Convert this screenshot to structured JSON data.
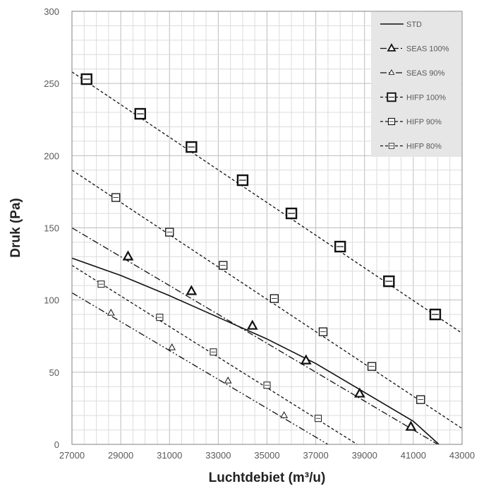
{
  "chart_data": {
    "type": "line",
    "xlabel": "Luchtdebiet (m³/u)",
    "ylabel": "Druk (Pa)",
    "xlim": [
      27000,
      43000
    ],
    "ylim": [
      0,
      300
    ],
    "x_ticks": [
      "27000",
      "29000",
      "31000",
      "33000",
      "35000",
      "37000",
      "39000",
      "41000",
      "43000"
    ],
    "y_ticks": [
      "0",
      "50",
      "100",
      "150",
      "200",
      "250",
      "300"
    ],
    "grid": "on (major and minor)",
    "legend_position": "top-right",
    "series": [
      {
        "name": "STD",
        "style": "solid",
        "marker": "none",
        "points": [
          [
            27000,
            129
          ],
          [
            29000,
            117
          ],
          [
            31000,
            103
          ],
          [
            33000,
            88
          ],
          [
            35000,
            73
          ],
          [
            37000,
            56
          ],
          [
            39000,
            36
          ],
          [
            41000,
            16
          ],
          [
            42050,
            0
          ]
        ]
      },
      {
        "name": "SEAS 100%",
        "style": "dash-dot",
        "marker": "triangle-bold",
        "points": [
          [
            27000,
            150
          ],
          [
            42000,
            0
          ]
        ],
        "markers": [
          [
            29300,
            130
          ],
          [
            31900,
            106
          ],
          [
            34400,
            82
          ],
          [
            36600,
            58
          ],
          [
            38800,
            35
          ],
          [
            40900,
            12
          ]
        ]
      },
      {
        "name": "SEAS 90%",
        "style": "dash-dot-dot",
        "marker": "triangle",
        "points": [
          [
            27000,
            105
          ],
          [
            37500,
            0
          ]
        ],
        "markers": [
          [
            28600,
            91
          ],
          [
            31100,
            67
          ],
          [
            33400,
            44
          ],
          [
            35700,
            20
          ]
        ]
      },
      {
        "name": "HIFP 100%",
        "style": "dash",
        "marker": "square-bold",
        "points": [
          [
            27000,
            258
          ],
          [
            43000,
            77
          ]
        ],
        "markers": [
          [
            27600,
            253
          ],
          [
            29800,
            229
          ],
          [
            31900,
            206
          ],
          [
            34000,
            183
          ],
          [
            36000,
            160
          ],
          [
            38000,
            137
          ],
          [
            40000,
            113
          ],
          [
            41900,
            90
          ]
        ]
      },
      {
        "name": "HIFP 90%",
        "style": "dash",
        "marker": "square",
        "points": [
          [
            27000,
            190
          ],
          [
            43000,
            11
          ]
        ],
        "markers": [
          [
            28800,
            171
          ],
          [
            31000,
            147
          ],
          [
            33200,
            124
          ],
          [
            35300,
            101
          ],
          [
            37300,
            78
          ],
          [
            39300,
            54
          ],
          [
            41300,
            31
          ]
        ]
      },
      {
        "name": "HIFP 80%",
        "style": "dash",
        "marker": "square-small",
        "points": [
          [
            27000,
            124
          ],
          [
            38700,
            0
          ]
        ],
        "markers": [
          [
            28200,
            111
          ],
          [
            30600,
            88
          ],
          [
            32800,
            64
          ],
          [
            35000,
            41
          ],
          [
            37100,
            18
          ]
        ]
      }
    ]
  }
}
